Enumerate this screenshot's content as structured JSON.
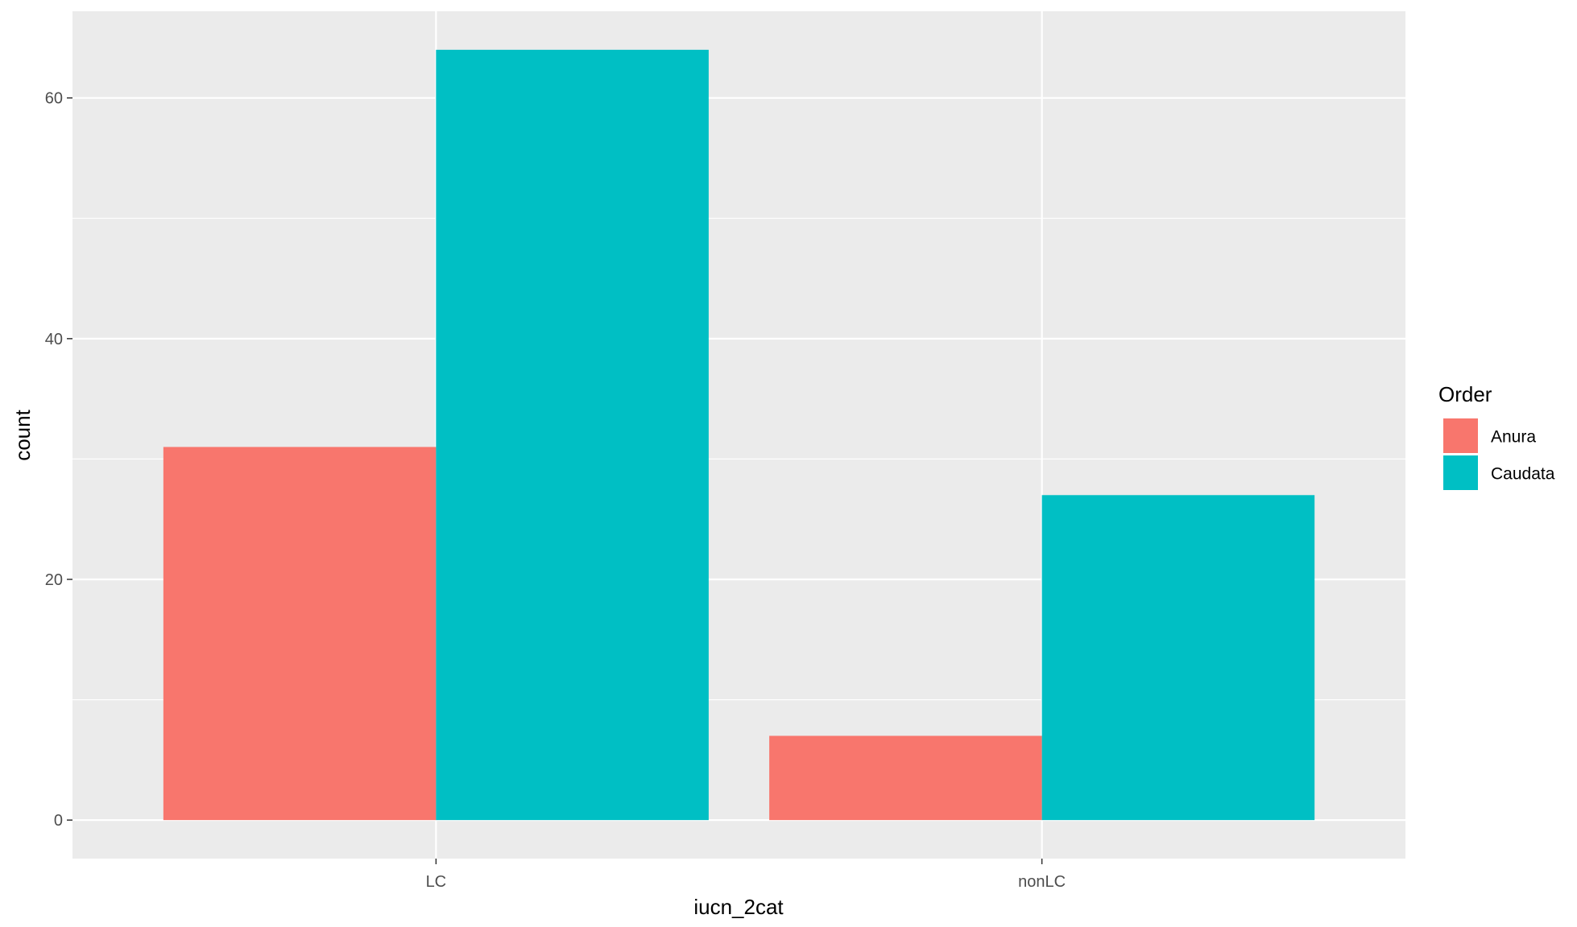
{
  "chart_data": {
    "type": "bar",
    "categories": [
      "LC",
      "nonLC"
    ],
    "series": [
      {
        "name": "Anura",
        "color": "#F8766D",
        "values": [
          31,
          7
        ]
      },
      {
        "name": "Caudata",
        "color": "#00BFC4",
        "values": [
          64,
          27
        ]
      }
    ],
    "xlabel": "iucn_2cat",
    "ylabel": "count",
    "ylim": [
      -3.2,
      67.2
    ],
    "yticks": [
      0,
      20,
      40,
      60
    ],
    "ytick_labels": [
      "0",
      "20",
      "40",
      "60"
    ],
    "legend": {
      "title": "Order",
      "position": "right"
    },
    "grid": true,
    "panel_background": "#EBEBEB",
    "grid_color": "#FFFFFF"
  }
}
